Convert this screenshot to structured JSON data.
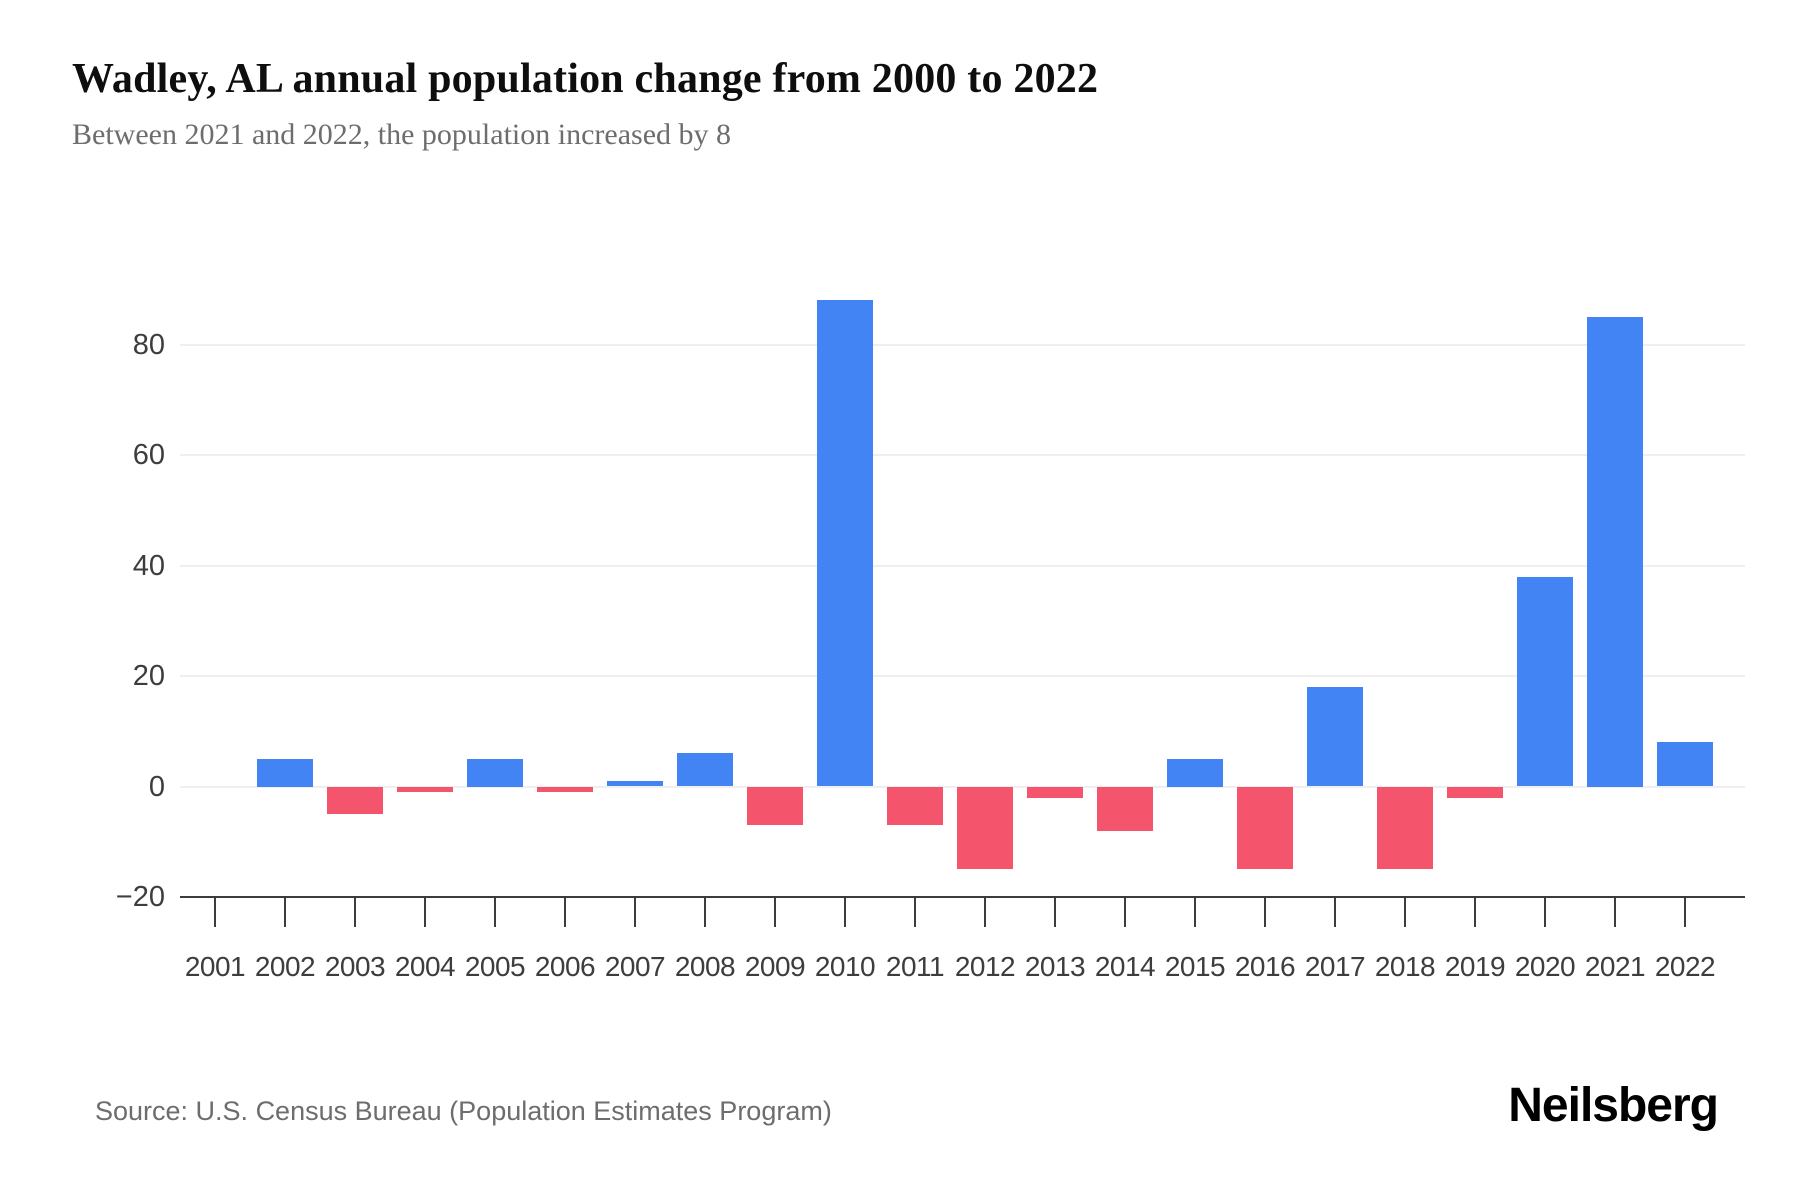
{
  "header": {
    "title": "Wadley, AL annual population change from 2000 to 2022",
    "subtitle": "Between 2021 and 2022, the population increased by 8"
  },
  "chart_data": {
    "type": "bar",
    "title": "Wadley, AL annual population change from 2000 to 2022",
    "xlabel": "",
    "ylabel": "",
    "categories": [
      "2001",
      "2002",
      "2003",
      "2004",
      "2005",
      "2006",
      "2007",
      "2008",
      "2009",
      "2010",
      "2011",
      "2012",
      "2013",
      "2014",
      "2015",
      "2016",
      "2017",
      "2018",
      "2019",
      "2020",
      "2021",
      "2022"
    ],
    "values": [
      0,
      5,
      -5,
      -1,
      5,
      -1,
      1,
      6,
      -7,
      88,
      -7,
      -15,
      -2,
      -8,
      5,
      -15,
      18,
      -15,
      -2,
      38,
      85,
      8
    ],
    "ylim": [
      -20,
      92
    ],
    "yticks": [
      80,
      60,
      40,
      20,
      0,
      -20
    ],
    "grid": "horizontal",
    "legend": "none",
    "positive_color": "#4384f4",
    "negative_color": "#f4546c"
  },
  "footer": {
    "source": "Source: U.S. Census Bureau (Population Estimates Program)",
    "brand": "Neilsberg"
  }
}
